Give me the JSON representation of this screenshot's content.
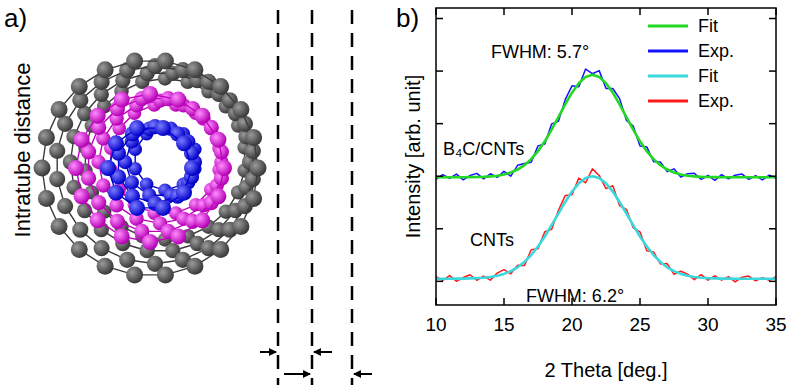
{
  "panel_labels": [
    "a)",
    "b)"
  ],
  "diagram": {
    "text": "Intratube distance"
  },
  "chart_data": {
    "type": "line",
    "x_label": "2 Theta [deg.]",
    "y_label": "Intensity [arb. unit]",
    "annotations": [
      "FWHM: 5.7°",
      "B₄C/CNTs",
      "CNTs",
      "FWHM: 6.2°"
    ],
    "x": [
      10,
      10.5,
      11,
      11.5,
      12,
      12.5,
      13,
      13.5,
      14,
      14.5,
      15,
      15.5,
      16,
      16.5,
      17,
      17.5,
      18,
      18.5,
      19,
      19.5,
      20,
      20.5,
      21,
      21.5,
      22,
      22.5,
      23,
      23.5,
      24,
      24.5,
      25,
      25.5,
      26,
      26.5,
      27,
      27.5,
      28,
      28.5,
      29,
      29.5,
      30,
      30.5,
      31,
      31.5,
      32,
      32.5,
      33,
      33.5,
      34,
      34.5,
      35
    ],
    "series": [
      {
        "name": "Fit",
        "color": "#22d822",
        "line_style": "solid",
        "values": [
          1.98,
          1.98,
          1.98,
          1.98,
          1.981,
          1.982,
          1.984,
          1.988,
          1.996,
          2.009,
          2.033,
          2.07,
          2.127,
          2.21,
          2.325,
          2.477,
          2.664,
          2.885,
          3.123,
          3.366,
          3.589,
          3.77,
          3.889,
          3.93,
          3.889,
          3.77,
          3.589,
          3.366,
          3.123,
          2.885,
          2.664,
          2.477,
          2.325,
          2.21,
          2.127,
          2.07,
          2.033,
          2.009,
          1.996,
          1.988,
          1.984,
          1.982,
          1.981,
          1.98,
          1.98,
          1.98,
          1.98,
          1.98,
          1.98,
          1.98,
          1.98
        ]
      },
      {
        "name": "Exp.",
        "color": "#1414ff",
        "line_style": "solid",
        "values": [
          1.94,
          2.03,
          1.96,
          2.04,
          1.931,
          2.012,
          2.054,
          1.948,
          2.046,
          1.979,
          2.093,
          2.0,
          2.207,
          2.24,
          2.265,
          2.577,
          2.614,
          2.995,
          3.043,
          3.456,
          3.719,
          3.7,
          4.039,
          3.95,
          4.009,
          3.67,
          3.669,
          3.476,
          3.063,
          2.955,
          2.574,
          2.557,
          2.275,
          2.27,
          2.087,
          2.14,
          1.983,
          2.049,
          2.056,
          1.938,
          2.014,
          1.922,
          2.031,
          1.95,
          2.02,
          2.04,
          1.94,
          2.01,
          1.93,
          2.02,
          1.96
        ]
      },
      {
        "name": "Fit",
        "color": "#3ad8dc",
        "line_style": "solid",
        "values": [
          0.05,
          0.05,
          0.05,
          0.051,
          0.052,
          0.056,
          0.061,
          0.069,
          0.083,
          0.107,
          0.142,
          0.194,
          0.268,
          0.37,
          0.5,
          0.662,
          0.853,
          1.068,
          1.29,
          1.511,
          1.708,
          1.864,
          1.965,
          2.0,
          1.965,
          1.864,
          1.708,
          1.511,
          1.29,
          1.068,
          0.853,
          0.662,
          0.5,
          0.37,
          0.268,
          0.194,
          0.142,
          0.107,
          0.083,
          0.069,
          0.061,
          0.056,
          0.052,
          0.051,
          0.05,
          0.05,
          0.05,
          0.05,
          0.05,
          0.05,
          0.05
        ]
      },
      {
        "name": "Exp.",
        "color": "#ff1a1a",
        "line_style": "solid",
        "values": [
          0.09,
          0.02,
          0.11,
          0.001,
          0.072,
          0.126,
          0.021,
          0.099,
          0.023,
          0.157,
          0.222,
          0.144,
          0.308,
          0.3,
          0.6,
          0.622,
          0.943,
          0.988,
          1.35,
          1.631,
          1.648,
          1.964,
          1.875,
          2.14,
          2.015,
          1.764,
          1.818,
          1.441,
          1.37,
          1.018,
          0.943,
          0.582,
          0.56,
          0.33,
          0.338,
          0.134,
          0.192,
          0.137,
          0.033,
          0.129,
          0.021,
          0.106,
          0.022,
          0.091,
          -0.01,
          0.08,
          0.1,
          0.01,
          0.07,
          0.02,
          0.09
        ]
      }
    ],
    "xlim": [
      10,
      35
    ],
    "xticks": [
      10,
      15,
      20,
      25,
      30,
      35
    ],
    "ylim": [
      -0.45,
      5.2
    ],
    "yticks": [
      0,
      1,
      2,
      3,
      4,
      5
    ],
    "tick_labels": "x",
    "legend": "upper right",
    "grid": false
  }
}
